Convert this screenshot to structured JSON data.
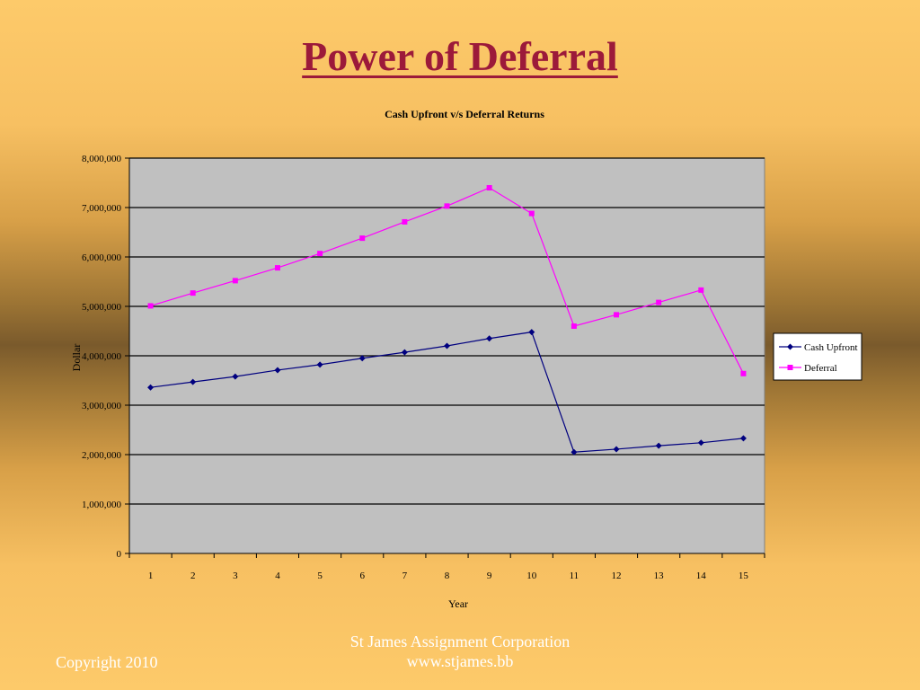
{
  "slide": {
    "title": "Power of Deferral",
    "copyright": "Copyright 2010",
    "company": "St James Assignment Corporation",
    "website": "www.stjames.bb"
  },
  "colors": {
    "title": "#9c1a3a",
    "plot_background": "#c0c0c0",
    "cash_upfront": "#00007f",
    "deferral": "#ff00ff"
  },
  "chart_data": {
    "type": "line",
    "title": "Cash Upfront v/s Deferral Returns",
    "xlabel": "Year",
    "ylabel": "Dollar",
    "categories": [
      "1",
      "2",
      "3",
      "4",
      "5",
      "6",
      "7",
      "8",
      "9",
      "10",
      "11",
      "12",
      "13",
      "14",
      "15"
    ],
    "ylim": [
      0,
      8000000
    ],
    "yticks": [
      "0",
      "1,000,000",
      "2,000,000",
      "3,000,000",
      "4,000,000",
      "5,000,000",
      "6,000,000",
      "7,000,000",
      "8,000,000"
    ],
    "grid": true,
    "legend_position": "right",
    "series": [
      {
        "name": "Cash Upfront",
        "color": "#00007f",
        "marker": "diamond",
        "values": [
          3360000,
          3470000,
          3580000,
          3710000,
          3820000,
          3950000,
          4070000,
          4200000,
          4350000,
          4480000,
          2050000,
          2110000,
          2180000,
          2240000,
          2330000
        ]
      },
      {
        "name": "Deferral",
        "color": "#ff00ff",
        "marker": "square",
        "values": [
          5010000,
          5270000,
          5520000,
          5780000,
          6070000,
          6380000,
          6710000,
          7030000,
          7400000,
          6880000,
          4600000,
          4830000,
          5080000,
          5330000,
          3640000
        ]
      }
    ]
  }
}
